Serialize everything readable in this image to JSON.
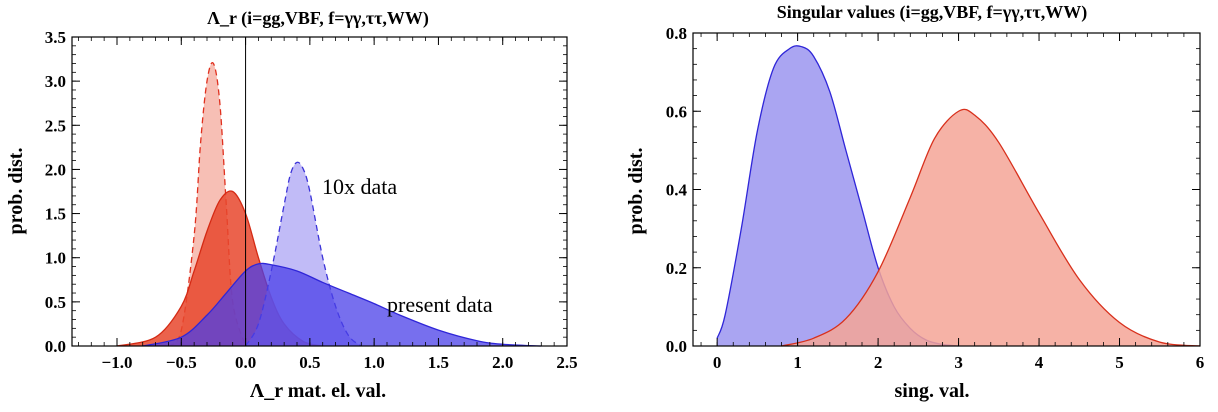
{
  "chart_data": [
    {
      "type": "area",
      "title": "Λ_r (i=gg,VBF, f=γγ,ττ,WW)",
      "xlabel": "Λ_r mat. el. val.",
      "ylabel": "prob. dist.",
      "xlim": [
        -1.35,
        2.5
      ],
      "ylim": [
        0,
        3.5
      ],
      "xticks": [
        "−1.0",
        "−0.5",
        "0.0",
        "0.5",
        "1.0",
        "1.5",
        "2.0",
        "2.5"
      ],
      "xtick_values": [
        -1.0,
        -0.5,
        0.0,
        0.5,
        1.0,
        1.5,
        2.0,
        2.5
      ],
      "yticks": [
        "0.0",
        "0.5",
        "1.0",
        "1.5",
        "2.0",
        "2.5",
        "3.0",
        "3.5"
      ],
      "ytick_values": [
        0.0,
        0.5,
        1.0,
        1.5,
        2.0,
        2.5,
        3.0,
        3.5
      ],
      "vertical_line_x": 0.0,
      "annotations": [
        "10x data",
        "present data"
      ],
      "series": [
        {
          "color": "#f08a78",
          "line_color": "#e0301e",
          "dashed": true,
          "x": [
            -0.6,
            -0.5,
            -0.4,
            -0.35,
            -0.3,
            -0.25,
            -0.2,
            -0.15,
            -0.1,
            0.0
          ],
          "y": [
            0.0,
            0.18,
            1.25,
            2.3,
            3.0,
            3.2,
            2.75,
            1.6,
            0.5,
            0.0
          ]
        },
        {
          "color": "#e8462d",
          "line_color": "#d42a14",
          "dashed": false,
          "x": [
            -1.0,
            -0.7,
            -0.5,
            -0.4,
            -0.3,
            -0.2,
            -0.1,
            0.0,
            0.1,
            0.2,
            0.3,
            0.45,
            0.6
          ],
          "y": [
            0.0,
            0.1,
            0.45,
            0.85,
            1.3,
            1.65,
            1.75,
            1.5,
            1.0,
            0.55,
            0.25,
            0.05,
            0.0
          ]
        },
        {
          "color": "#9f96f2",
          "line_color": "#3b33d8",
          "dashed": true,
          "x": [
            0.0,
            0.1,
            0.2,
            0.3,
            0.35,
            0.4,
            0.45,
            0.5,
            0.6,
            0.7,
            0.8,
            0.9
          ],
          "y": [
            0.0,
            0.25,
            0.85,
            1.6,
            1.95,
            2.08,
            2.0,
            1.75,
            1.0,
            0.45,
            0.12,
            0.0
          ]
        },
        {
          "color": "#4a3fe8",
          "line_color": "#2f26d8",
          "dashed": false,
          "x": [
            -0.8,
            -0.5,
            -0.3,
            -0.15,
            0.0,
            0.1,
            0.2,
            0.4,
            0.6,
            0.8,
            1.0,
            1.2,
            1.5,
            1.8,
            2.0,
            2.3
          ],
          "y": [
            0.0,
            0.1,
            0.35,
            0.6,
            0.85,
            0.93,
            0.92,
            0.85,
            0.72,
            0.6,
            0.48,
            0.35,
            0.18,
            0.06,
            0.02,
            0.0
          ]
        }
      ]
    },
    {
      "type": "area",
      "title": "Singular values (i=gg,VBF, f=γγ,ττ,WW)",
      "xlabel": "sing. val.",
      "ylabel": "prob. dist.",
      "xlim": [
        -0.3,
        6.0
      ],
      "ylim": [
        0,
        0.8
      ],
      "xticks": [
        "0",
        "1",
        "2",
        "3",
        "4",
        "5",
        "6"
      ],
      "xtick_values": [
        0,
        1,
        2,
        3,
        4,
        5,
        6
      ],
      "yticks": [
        "0.0",
        "0.2",
        "0.4",
        "0.6",
        "0.8"
      ],
      "ytick_values": [
        0.0,
        0.2,
        0.4,
        0.6,
        0.8
      ],
      "series": [
        {
          "color": "#9b95f0",
          "line_color": "#2f26d8",
          "dashed": false,
          "x": [
            0.0,
            0.1,
            0.3,
            0.5,
            0.7,
            0.9,
            1.05,
            1.2,
            1.4,
            1.6,
            1.8,
            2.0,
            2.2,
            2.4,
            2.6,
            2.8,
            3.0
          ],
          "y": [
            0.02,
            0.08,
            0.3,
            0.55,
            0.71,
            0.76,
            0.765,
            0.74,
            0.65,
            0.5,
            0.35,
            0.2,
            0.1,
            0.045,
            0.015,
            0.004,
            0.0
          ]
        },
        {
          "color": "#f4a597",
          "line_color": "#d8301c",
          "dashed": false,
          "x": [
            0.8,
            1.2,
            1.6,
            2.0,
            2.4,
            2.7,
            3.0,
            3.2,
            3.5,
            4.0,
            4.5,
            5.0,
            5.5,
            6.0
          ],
          "y": [
            0.0,
            0.02,
            0.07,
            0.19,
            0.38,
            0.53,
            0.6,
            0.59,
            0.52,
            0.34,
            0.17,
            0.06,
            0.01,
            0.0
          ]
        }
      ]
    }
  ]
}
